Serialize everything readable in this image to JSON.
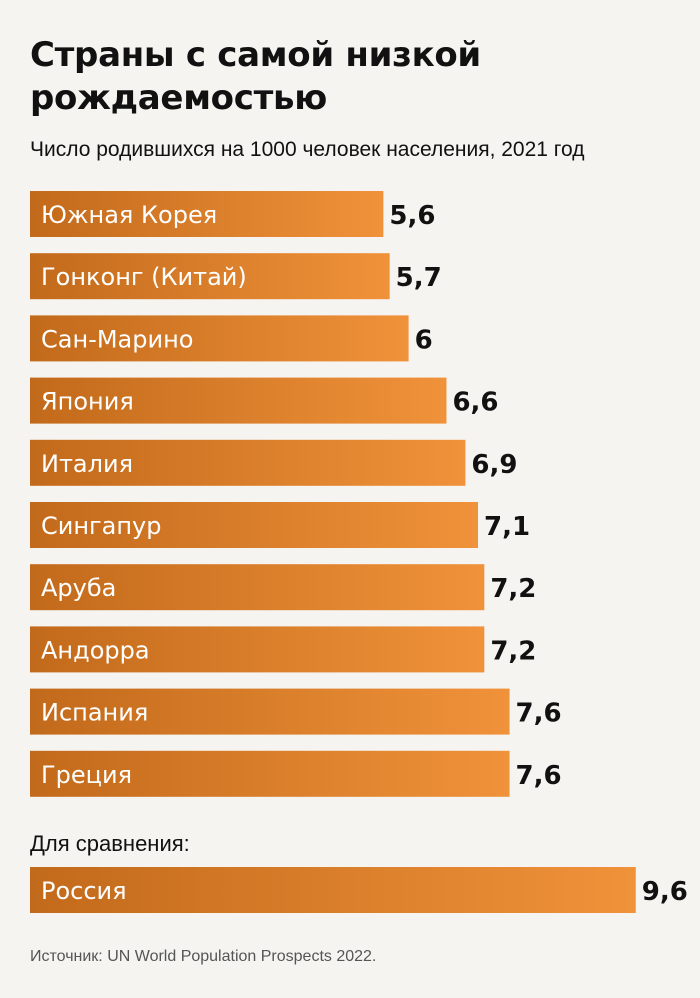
{
  "title": "Страны с самой низкой рождаемостью",
  "subtitle": "Число родившихся на 1000 человек населения, 2021 год",
  "comparison_label": "Для сравнения:",
  "source": "Источник: UN World Population Prospects 2022.",
  "colors": {
    "bar_start": "#c26a1b",
    "bar_end": "#f0923a"
  },
  "chart_data": {
    "type": "bar",
    "orientation": "horizontal",
    "title": "Страны с самой низкой рождаемостью",
    "subtitle": "Число родившихся на 1000 человек населения, 2021 год",
    "categories": [
      "Южная Корея",
      "Гонконг (Китай)",
      "Сан-Марино",
      "Япония",
      "Италия",
      "Сингапур",
      "Аруба",
      "Андорра",
      "Испания",
      "Греция"
    ],
    "values": [
      5.6,
      5.7,
      6,
      6.6,
      6.9,
      7.1,
      7.2,
      7.2,
      7.6,
      7.6
    ],
    "value_labels": [
      "5,6",
      "5,7",
      "6",
      "6,6",
      "6,9",
      "7,1",
      "7,2",
      "7,2",
      "7,6",
      "7,6"
    ],
    "comparison": {
      "category": "Россия",
      "value": 9.6,
      "value_label": "9,6"
    },
    "grid": false,
    "legend": "none"
  }
}
